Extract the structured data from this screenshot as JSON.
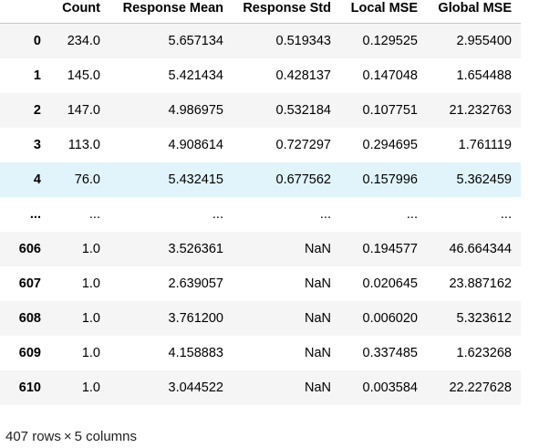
{
  "table": {
    "index_header": "",
    "columns": [
      "Count",
      "Response Mean",
      "Response Std",
      "Local MSE",
      "Global MSE"
    ],
    "rows": [
      {
        "index": "0",
        "cells": [
          "234.0",
          "5.657134",
          "0.519343",
          "0.129525",
          "2.955400"
        ]
      },
      {
        "index": "1",
        "cells": [
          "145.0",
          "5.421434",
          "0.428137",
          "0.147048",
          "1.654488"
        ]
      },
      {
        "index": "2",
        "cells": [
          "147.0",
          "4.986975",
          "0.532184",
          "0.107751",
          "21.232763"
        ]
      },
      {
        "index": "3",
        "cells": [
          "113.0",
          "4.908614",
          "0.727297",
          "0.294695",
          "1.761119"
        ]
      },
      {
        "index": "4",
        "cells": [
          "76.0",
          "5.432415",
          "0.677562",
          "0.157996",
          "5.362459"
        ],
        "highlighted": true
      },
      {
        "index": "...",
        "cells": [
          "...",
          "...",
          "...",
          "...",
          "..."
        ]
      },
      {
        "index": "606",
        "cells": [
          "1.0",
          "3.526361",
          "NaN",
          "0.194577",
          "46.664344"
        ]
      },
      {
        "index": "607",
        "cells": [
          "1.0",
          "2.639057",
          "NaN",
          "0.020645",
          "23.887162"
        ]
      },
      {
        "index": "608",
        "cells": [
          "1.0",
          "3.761200",
          "NaN",
          "0.006020",
          "5.323612"
        ]
      },
      {
        "index": "609",
        "cells": [
          "1.0",
          "4.158883",
          "NaN",
          "0.337485",
          "1.623268"
        ]
      },
      {
        "index": "610",
        "cells": [
          "1.0",
          "3.044522",
          "NaN",
          "0.003584",
          "22.227628"
        ]
      }
    ]
  },
  "footer": {
    "rows_count": "407",
    "rows_word": "rows",
    "times": "×",
    "cols_count": "5",
    "cols_word": "columns"
  },
  "colors": {
    "stripe": "#f5f5f5",
    "hover": "#e1f4fb",
    "header_rule": "#c6c6c6"
  }
}
